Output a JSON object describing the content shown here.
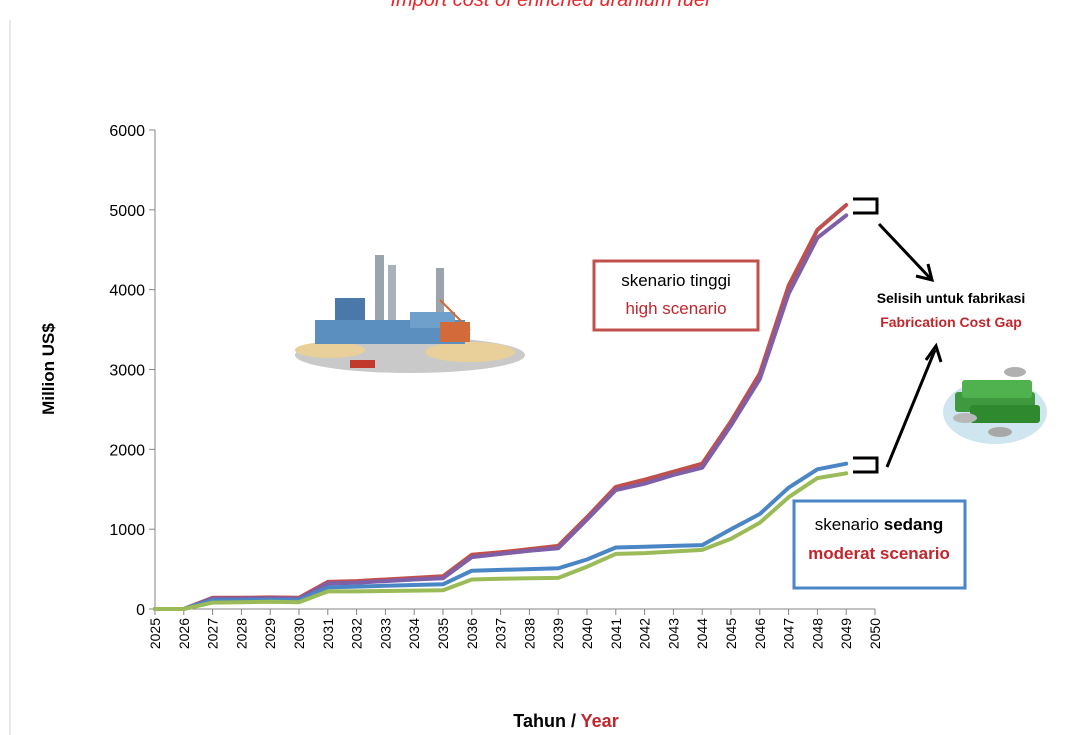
{
  "chart_data": {
    "type": "line",
    "title": "Import cost of enriched uranium fuel",
    "y_label": "Million US$",
    "x_label": "Tahun",
    "x_label_sep": "/",
    "x_label_en": "Year",
    "x": [
      2025,
      2026,
      2027,
      2028,
      2029,
      2030,
      2031,
      2032,
      2033,
      2034,
      2035,
      2036,
      2037,
      2038,
      2039,
      2040,
      2041,
      2042,
      2043,
      2044,
      2045,
      2046,
      2047,
      2048,
      2049
    ],
    "xlim": [
      2025,
      2050
    ],
    "xticks": [
      2025,
      2026,
      2027,
      2028,
      2029,
      2030,
      2031,
      2032,
      2033,
      2034,
      2035,
      2036,
      2037,
      2038,
      2039,
      2040,
      2041,
      2042,
      2043,
      2044,
      2045,
      2046,
      2047,
      2048,
      2049,
      2050
    ],
    "ylim": [
      0,
      6000
    ],
    "yticks": [
      0,
      1000,
      2000,
      3000,
      4000,
      5000,
      6000
    ],
    "series": [
      {
        "color": "#c0504d",
        "values": [
          0,
          0,
          140,
          140,
          145,
          140,
          340,
          350,
          370,
          390,
          410,
          680,
          710,
          750,
          790,
          1150,
          1530,
          1620,
          1720,
          1820,
          2350,
          2950,
          4050,
          4750,
          5060
        ]
      },
      {
        "color": "#7e5fa8",
        "values": [
          0,
          0,
          130,
          130,
          135,
          130,
          320,
          330,
          350,
          370,
          385,
          650,
          690,
          730,
          760,
          1120,
          1490,
          1570,
          1680,
          1770,
          2300,
          2880,
          3950,
          4650,
          4930
        ]
      },
      {
        "color": "#4a86c5",
        "values": [
          0,
          0,
          110,
          110,
          115,
          110,
          270,
          280,
          290,
          300,
          310,
          480,
          490,
          500,
          510,
          620,
          770,
          780,
          790,
          800,
          1000,
          1190,
          1520,
          1750,
          1820
        ]
      },
      {
        "color": "#9bbb59",
        "values": [
          0,
          0,
          80,
          85,
          90,
          85,
          220,
          220,
          225,
          230,
          235,
          370,
          380,
          385,
          390,
          530,
          690,
          700,
          720,
          740,
          880,
          1080,
          1400,
          1640,
          1700
        ]
      }
    ],
    "annotations": {
      "high_id": "skenario tinggi",
      "high_en": "high scenario",
      "moderate_id_1": "skenario",
      "moderate_id_2": "sedang",
      "moderate_en": "moderat scenario",
      "gap_id": "Selisih  untuk fabrikasi",
      "gap_en": "Fabrication Cost Gap"
    }
  }
}
